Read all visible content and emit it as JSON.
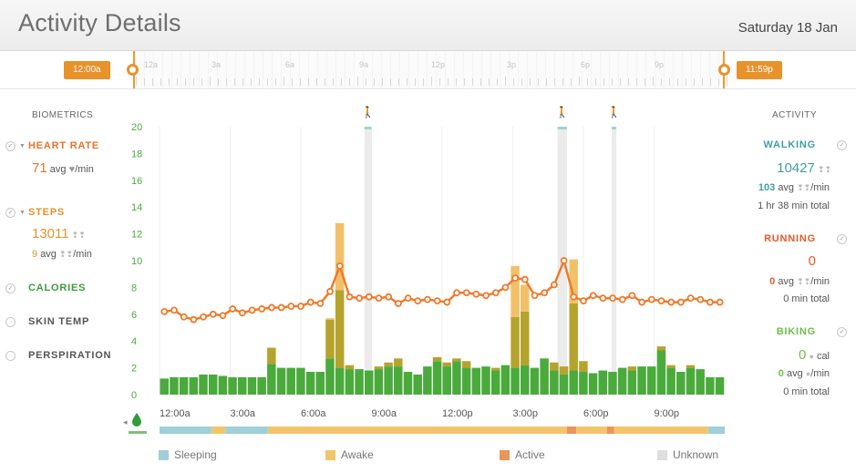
{
  "header": {
    "title": "Activity Details",
    "date": "Saturday 18 Jan"
  },
  "timeline": {
    "start_handle": "12:00a",
    "end_handle": "11:59p",
    "hours": [
      "12a",
      "3a",
      "6a",
      "9a",
      "12p",
      "3p",
      "6p",
      "9p"
    ]
  },
  "biometrics": {
    "heading": "BIOMETRICS",
    "heart_rate": {
      "label": "HEART RATE",
      "value": "71",
      "unit": "avg",
      "per": "/min",
      "color": "#e8732c"
    },
    "steps": {
      "label": "STEPS",
      "value": "13011",
      "avg_value": "9",
      "avg_unit": "avg",
      "per": "/min",
      "color": "#e8922c"
    },
    "calories": {
      "label": "CALORIES",
      "color": "#3f9b3f"
    },
    "skin_temp": {
      "label": "SKIN TEMP"
    },
    "perspiration": {
      "label": "PERSPIRATION"
    }
  },
  "activity": {
    "heading": "ACTIVITY",
    "walking": {
      "label": "WALKING",
      "value": "10427",
      "avg_value": "103",
      "avg_unit": "avg",
      "per": "/min",
      "total": "1 hr 38 min total",
      "color": "#3f9fa5"
    },
    "running": {
      "label": "RUNNING",
      "value": "0",
      "avg_value": "0",
      "avg_unit": "avg",
      "per": "/min",
      "total": "0 min total",
      "color": "#e85a2c"
    },
    "biking": {
      "label": "BIKING",
      "value": "0",
      "value_unit": "cal",
      "avg_value": "0",
      "avg_unit": "avg",
      "per": "/min",
      "total": "0 min total",
      "color": "#6fbf4a"
    }
  },
  "legend": [
    {
      "label": "Sleeping",
      "color": "#9fcfd9"
    },
    {
      "label": "Awake",
      "color": "#f3c56a"
    },
    {
      "label": "Active",
      "color": "#e8965a"
    },
    {
      "label": "Unknown",
      "color": "#dedede"
    }
  ],
  "chart_data": {
    "type": "bar",
    "x_tick_labels": [
      "12:00a",
      "3:00a",
      "6:00a",
      "9:00a",
      "12:00p",
      "3:00p",
      "6:00p",
      "9:00p"
    ],
    "y_ticks": [
      0,
      2,
      4,
      6,
      8,
      10,
      12,
      14,
      16,
      18,
      20
    ],
    "ylim": [
      0,
      20
    ],
    "series": [
      {
        "color": "#4aaa3c",
        "values": [
          1.2,
          1.3,
          1.3,
          1.3,
          1.5,
          1.5,
          1.4,
          1.3,
          1.3,
          1.3,
          1.3,
          2.3,
          2.0,
          2.0,
          2.0,
          1.7,
          1.7,
          2.7,
          2.0,
          1.9,
          1.9,
          1.8,
          1.9,
          2.1,
          2.1,
          1.7,
          1.5,
          2.1,
          2.5,
          2.1,
          2.5,
          2.0,
          2.0,
          2.1,
          1.8,
          2.2,
          2.0,
          2.2,
          2.0,
          2.7,
          1.8,
          1.5,
          1.8,
          1.7,
          1.6,
          1.8,
          1.7,
          2.0,
          1.8,
          2.1,
          2.1,
          3.3,
          2.0,
          1.7,
          2.0,
          1.9,
          1.3,
          1.3
        ]
      },
      {
        "color": "#b5a32e",
        "values": [
          0,
          0,
          0,
          0,
          0,
          0,
          0,
          0,
          0,
          0,
          0,
          1.2,
          0,
          0,
          0,
          0,
          0,
          2.9,
          5.8,
          0.3,
          0,
          0,
          0.2,
          0.3,
          0.6,
          0,
          0,
          0,
          0.3,
          0.3,
          0.2,
          0.5,
          0,
          0,
          0.2,
          0,
          3.8,
          4.0,
          0,
          0,
          0.6,
          0.6,
          5.0,
          0.8,
          0,
          0,
          0,
          0,
          0.3,
          0,
          0,
          0.3,
          0.2,
          0,
          0.2,
          0,
          0,
          0
        ]
      },
      {
        "color": "#f3c06a",
        "values": [
          0,
          0,
          0,
          0,
          0,
          0,
          0,
          0,
          0,
          0,
          0,
          0,
          0,
          0,
          0,
          0,
          0,
          0.1,
          5.0,
          0,
          0,
          0,
          0,
          0,
          0,
          0,
          0,
          0,
          0,
          0,
          0,
          0,
          0,
          0,
          0,
          0,
          3.8,
          2.0,
          0,
          0,
          0,
          0,
          3.3,
          0,
          0,
          0,
          0,
          0,
          0,
          0,
          0,
          0,
          0,
          0,
          0,
          0,
          0,
          0
        ]
      }
    ],
    "line": {
      "color": "#ef7a2b",
      "values": [
        6.2,
        6.3,
        5.8,
        5.6,
        5.8,
        6.0,
        5.9,
        6.4,
        6.1,
        6.3,
        6.4,
        6.5,
        6.5,
        6.6,
        6.6,
        6.9,
        6.8,
        7.7,
        9.6,
        7.3,
        7.2,
        7.3,
        7.2,
        7.3,
        6.8,
        7.2,
        7.0,
        7.1,
        7.0,
        6.9,
        7.6,
        7.6,
        7.5,
        7.4,
        7.6,
        8.0,
        8.7,
        8.6,
        7.4,
        7.6,
        8.2,
        10.0,
        7.3,
        7.0,
        7.4,
        7.2,
        7.2,
        7.1,
        7.4,
        6.9,
        7.1,
        7.0,
        6.9,
        6.9,
        7.2,
        7.1,
        6.9,
        6.9
      ]
    },
    "walk_periods": [
      [
        8.7,
        9.0
      ],
      [
        16.9,
        17.3
      ],
      [
        19.2,
        19.4
      ]
    ],
    "day_strip": [
      {
        "from": 0,
        "to": 2.2,
        "state": "Sleeping"
      },
      {
        "from": 2.2,
        "to": 2.8,
        "state": "Awake"
      },
      {
        "from": 2.8,
        "to": 4.6,
        "state": "Sleeping"
      },
      {
        "from": 4.6,
        "to": 17.3,
        "state": "Awake"
      },
      {
        "from": 17.3,
        "to": 17.7,
        "state": "Active"
      },
      {
        "from": 17.7,
        "to": 19.0,
        "state": "Awake"
      },
      {
        "from": 19.0,
        "to": 19.3,
        "state": "Active"
      },
      {
        "from": 19.3,
        "to": 23.3,
        "state": "Awake"
      },
      {
        "from": 23.3,
        "to": 24.0,
        "state": "Sleeping"
      }
    ]
  }
}
